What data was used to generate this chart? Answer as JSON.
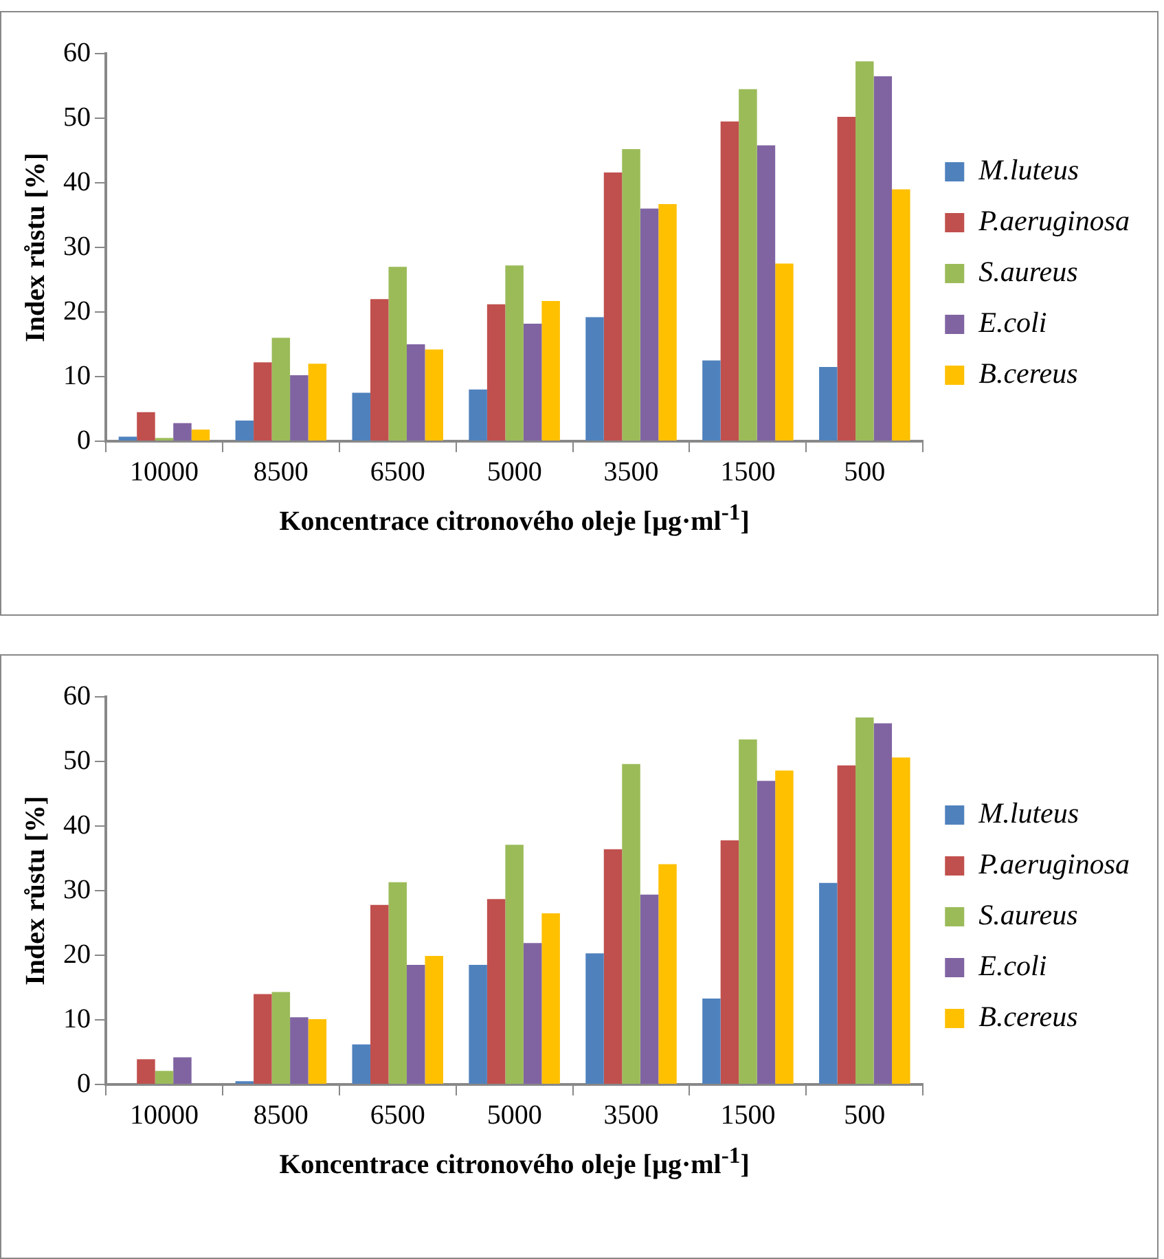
{
  "chart_data": [
    {
      "type": "bar",
      "categories": [
        "10000",
        "8500",
        "6500",
        "5000",
        "3500",
        "1500",
        "500"
      ],
      "xlabel": "Koncentrace citronového oleje [µg·ml$^{-1}$]",
      "ylabel": "Index růstu [%]",
      "ylim": [
        0,
        60
      ],
      "yticks": [
        0,
        10,
        20,
        30,
        40,
        50,
        60
      ],
      "grid": false,
      "legend": "right",
      "series": [
        {
          "name": "M.luteus",
          "color": "#4f81bd",
          "values": [
            0.7,
            3.2,
            7.5,
            8,
            19.2,
            12.5,
            11.5
          ]
        },
        {
          "name": "P.aeruginosa",
          "color": "#c0504d",
          "values": [
            4.5,
            12.2,
            22,
            21.2,
            41.6,
            49.5,
            50.2
          ]
        },
        {
          "name": "S.aureus",
          "color": "#9bbb59",
          "values": [
            0.5,
            16,
            27,
            27.2,
            45.2,
            54.5,
            58.8
          ]
        },
        {
          "name": "E.coli",
          "color": "#8064a2",
          "values": [
            2.8,
            10.2,
            15,
            18.2,
            36,
            45.8,
            56.5
          ]
        },
        {
          "name": "B.cereus",
          "color": "#ffc000",
          "values": [
            1.8,
            12,
            14.2,
            21.7,
            36.7,
            27.5,
            39
          ]
        }
      ]
    },
    {
      "type": "bar",
      "categories": [
        "10000",
        "8500",
        "6500",
        "5000",
        "3500",
        "1500",
        "500"
      ],
      "xlabel": "Koncentrace citronového oleje [µg·ml$^{-1}$]",
      "ylabel": "Index růstu [%]",
      "ylim": [
        0,
        60
      ],
      "yticks": [
        0,
        10,
        20,
        30,
        40,
        50,
        60
      ],
      "grid": false,
      "legend": "right",
      "series": [
        {
          "name": "M.luteus",
          "color": "#4f81bd",
          "values": [
            0,
            0.5,
            6.2,
            18.5,
            20.3,
            13.3,
            31.2
          ]
        },
        {
          "name": "P.aeruginosa",
          "color": "#c0504d",
          "values": [
            3.9,
            14,
            27.8,
            28.7,
            36.4,
            37.8,
            49.4
          ]
        },
        {
          "name": "S.aureus",
          "color": "#9bbb59",
          "values": [
            2.1,
            14.3,
            31.3,
            37.1,
            49.6,
            53.4,
            56.8
          ]
        },
        {
          "name": "E.coli",
          "color": "#8064a2",
          "values": [
            4.2,
            10.4,
            18.5,
            21.9,
            29.4,
            47,
            55.9
          ]
        },
        {
          "name": "B.cereus",
          "color": "#ffc000",
          "values": [
            0,
            10.1,
            19.9,
            26.5,
            34.1,
            48.6,
            50.6
          ]
        }
      ]
    }
  ]
}
